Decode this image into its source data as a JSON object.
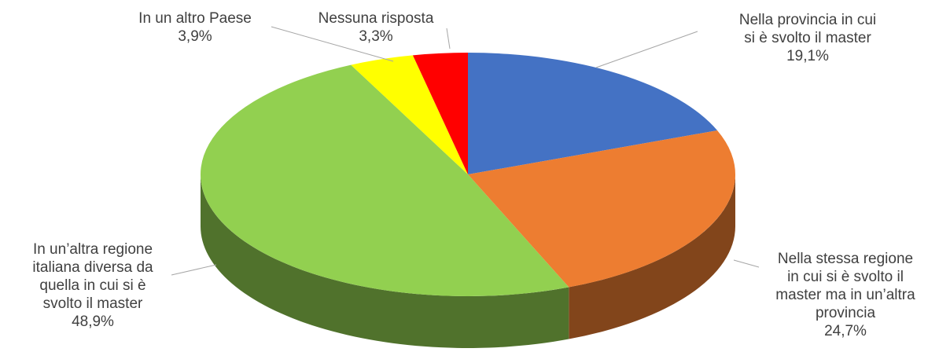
{
  "chart_data": {
    "type": "pie3d",
    "categories": [
      "Nella provincia in cui\nsi è svolto il master",
      "Nella stessa regione\nin cui si è svolto il\nmaster ma in un’altra\nprovincia",
      "In un’altra regione\nitaliana diversa da\nquella in cui si è\nsvolto il master",
      "In un altro Paese",
      "Nessuna risposta"
    ],
    "values": [
      19.1,
      24.7,
      48.9,
      3.9,
      3.3
    ],
    "value_labels": [
      "19,1%",
      "24,7%",
      "48,9%",
      "3,9%",
      "3,3%"
    ],
    "colors": [
      "#4472c4",
      "#ed7d31",
      "#92d050",
      "#ffff00",
      "#ff0000"
    ]
  }
}
